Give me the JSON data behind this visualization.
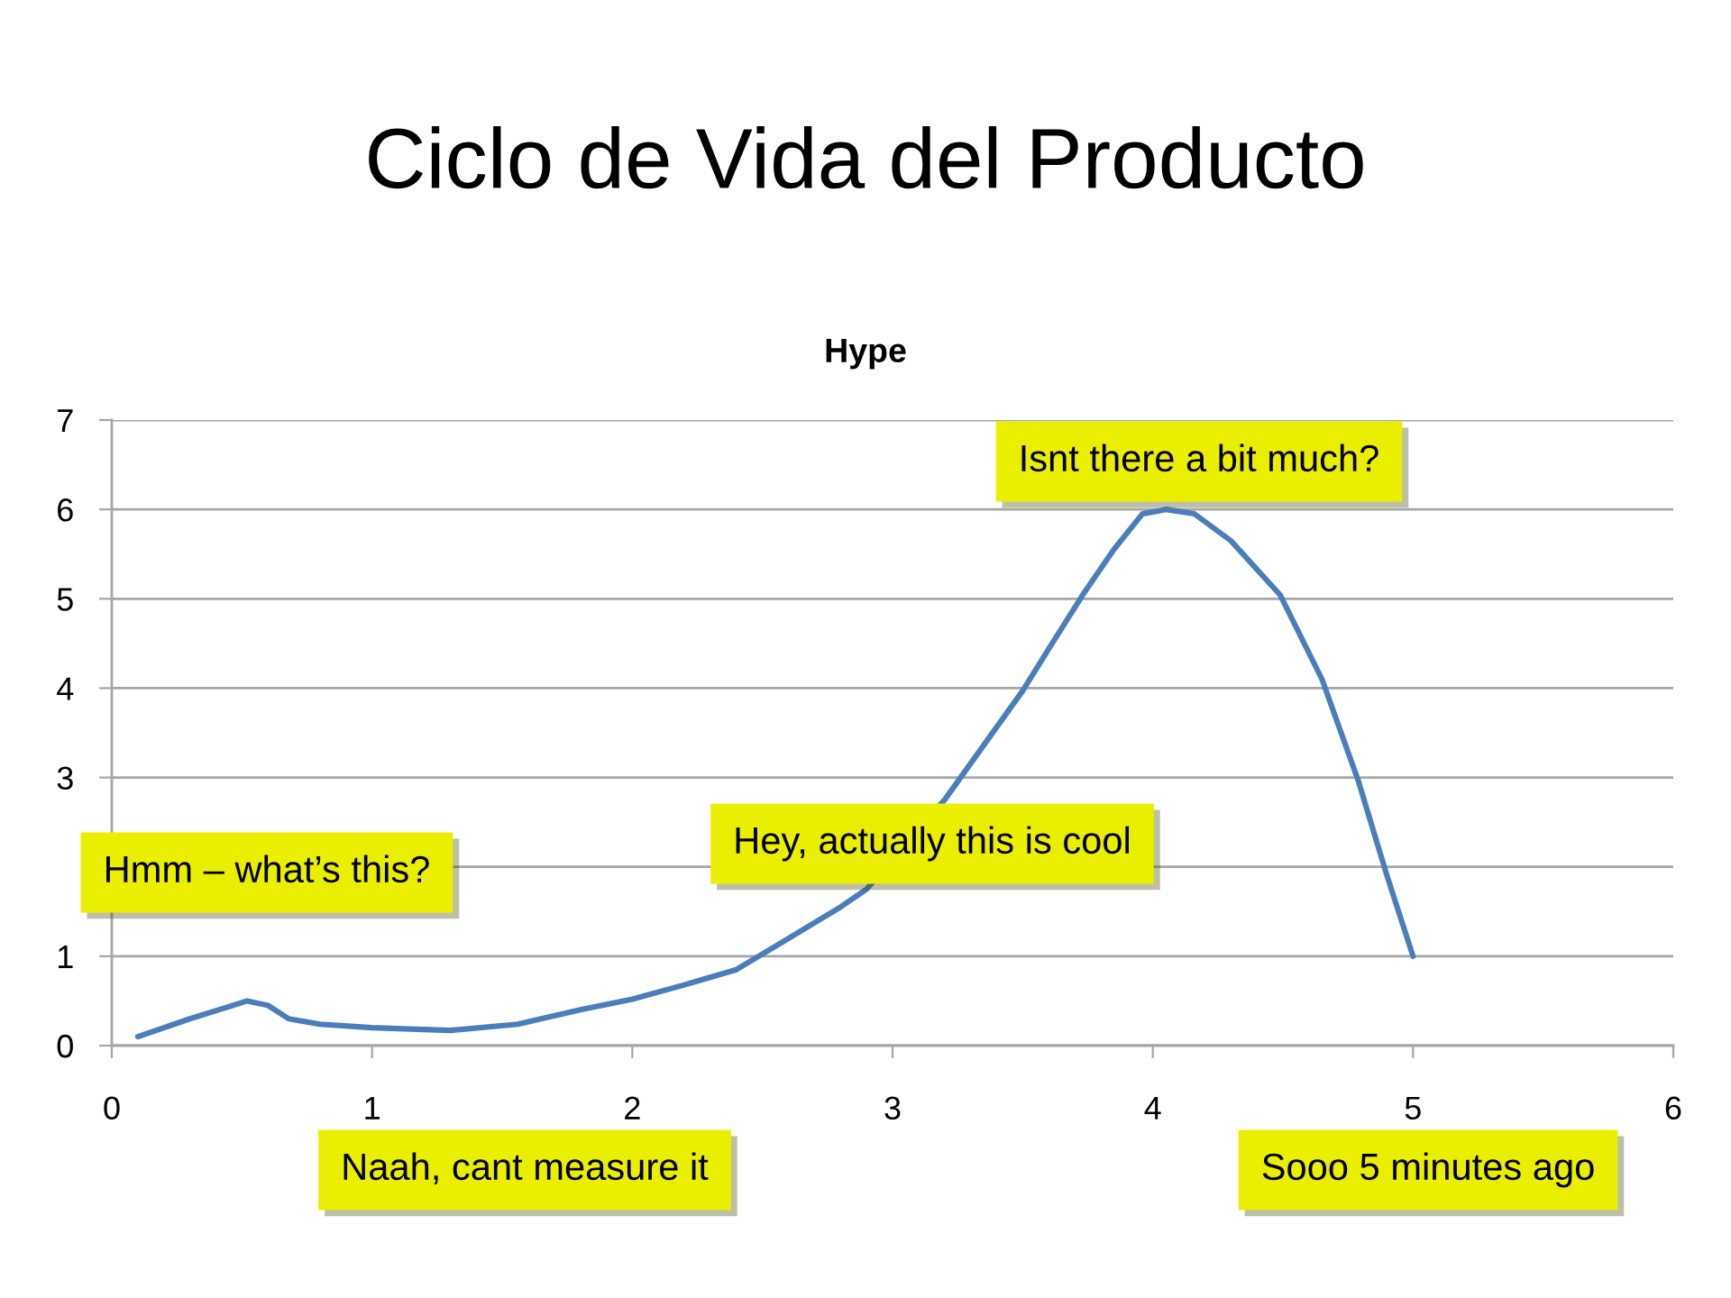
{
  "chart_data": {
    "type": "line",
    "title": "Ciclo de Vida del Producto",
    "subtitle": "Hype",
    "x": [
      0.1,
      0.3,
      0.52,
      0.6,
      0.68,
      0.8,
      1.0,
      1.3,
      1.56,
      1.8,
      2.0,
      2.2,
      2.4,
      2.6,
      2.8,
      2.9,
      3.2,
      3.5,
      3.6,
      3.73,
      3.85,
      3.96,
      4.05,
      4.16,
      4.3,
      4.49,
      4.65,
      4.79,
      4.9,
      5.0
    ],
    "series": [
      {
        "color": "#4a7ebb",
        "values": [
          0.1,
          0.3,
          0.5,
          0.45,
          0.3,
          0.24,
          0.2,
          0.17,
          0.24,
          0.4,
          0.52,
          0.68,
          0.85,
          1.2,
          1.55,
          1.75,
          2.75,
          3.97,
          4.44,
          5.04,
          5.55,
          5.95,
          6.0,
          5.95,
          5.65,
          5.04,
          4.1,
          2.96,
          1.9,
          1.0
        ]
      }
    ],
    "xlim": [
      0,
      6
    ],
    "xticks": [
      0,
      1,
      2,
      3,
      4,
      5,
      6
    ],
    "ylim": [
      0,
      7
    ],
    "yticks": [
      0,
      1,
      {
        "value": 2,
        "label": null
      },
      3,
      4,
      5,
      6,
      7
    ],
    "grid": "y",
    "line_style": "solid",
    "annotations": [
      "Hmm – what’s this?",
      "Naah, cant measure it",
      "Hey, actually this is cool",
      "Isnt there a bit much?",
      "Sooo 5 minutes ago"
    ]
  }
}
